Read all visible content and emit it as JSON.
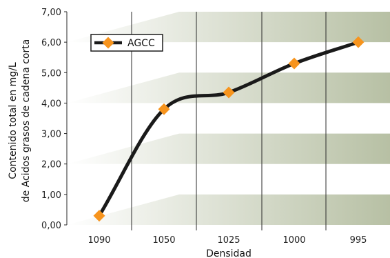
{
  "chart_data": {
    "type": "line",
    "xlabel": "Densidad",
    "ylabel_lines": [
      "Contenido total en mg/L",
      "de Acidos grasos de cadena corta"
    ],
    "categories": [
      "1090",
      "1050",
      "1025",
      "1000",
      "995"
    ],
    "y_ticks": [
      "0,00",
      "1,00",
      "2,00",
      "3,00",
      "4,00",
      "5,00",
      "6,00",
      "7,00"
    ],
    "ylim": [
      0,
      7
    ],
    "series": [
      {
        "name": "AGCC",
        "values": [
          0.3,
          3.8,
          4.35,
          5.3,
          6.0
        ],
        "color": "#1a1a1a",
        "marker_color": "#f7941d"
      }
    ],
    "legend_position": "top-left",
    "colors": {
      "band_light": "#ffffff",
      "band_dark": "#b7c0a4"
    }
  }
}
